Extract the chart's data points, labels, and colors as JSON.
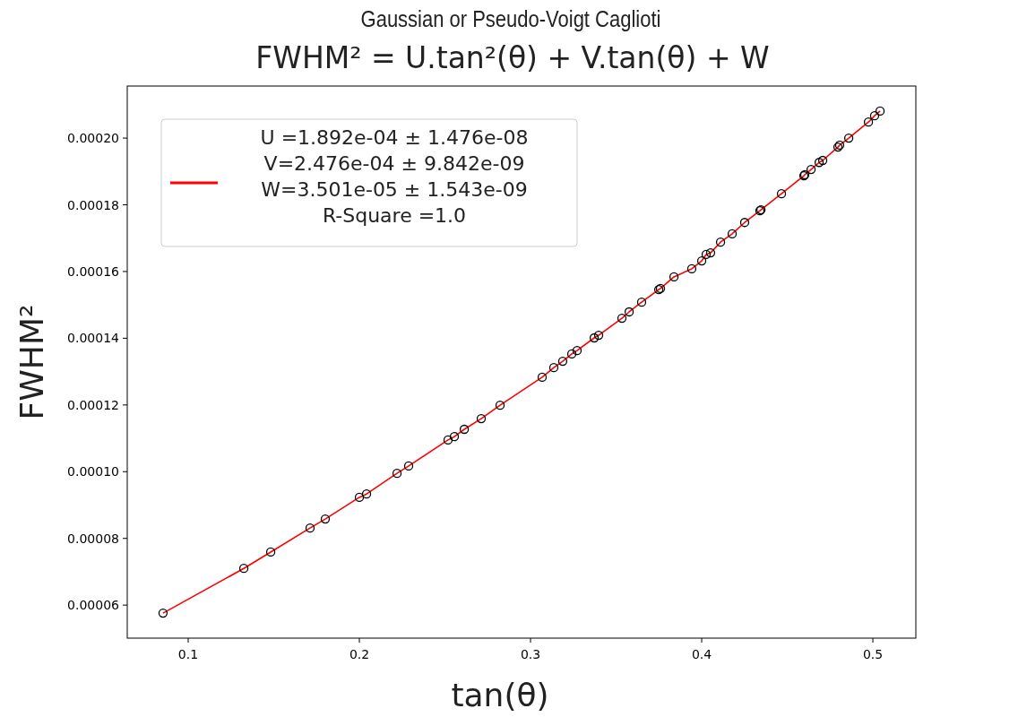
{
  "chart_data": {
    "type": "scatter",
    "title": "Gaussian or Pseudo-Voigt Caglioti",
    "subtitle": "FWHM² = U.tan²(θ) + V.tan(θ) + W",
    "xlabel": "tan(θ)",
    "ylabel": "FWHM²",
    "xlim": [
      0.0644,
      0.5251
    ],
    "xticks": [
      0.1,
      0.2,
      0.3,
      0.4,
      0.5
    ],
    "ylim": [
      5.01e-05,
      0.0002156
    ],
    "yticks": [
      {
        "value": 6e-05,
        "label": "0.00006"
      },
      {
        "value": 8e-05,
        "label": "0.00008"
      },
      {
        "value": 0.0001,
        "label": "0.00010"
      },
      {
        "value": 0.00012,
        "label": "0.00012"
      },
      {
        "value": 0.00014,
        "label": "0.00014"
      },
      {
        "value": 0.00016,
        "label": "0.00016"
      },
      {
        "value": 0.00018,
        "label": "0.00018"
      },
      {
        "value": 0.0002,
        "label": "0.00020"
      }
    ],
    "grid": false,
    "legend": "top left",
    "series": [
      {
        "type": "line",
        "name": "U =1.892e-04 ± 1.476e-08\nV=2.476e-04 ± 9.842e-09\nW=3.501e-05 ± 1.543e-09\nR-Square =1.0",
        "color": "#ff0000",
        "line_style": "solid",
        "marker": "none",
        "x": [
          0.0853,
          0.1325,
          0.1482,
          0.1712,
          0.1801,
          0.2,
          0.2042,
          0.222,
          0.2288,
          0.2518,
          0.2555,
          0.2613,
          0.2712,
          0.2822,
          0.3068,
          0.3136,
          0.3188,
          0.3241,
          0.3272,
          0.3372,
          0.3398,
          0.3534,
          0.3576,
          0.3649,
          0.3749,
          0.3759,
          0.3838,
          0.3942,
          0.4,
          0.4026,
          0.4052,
          0.411,
          0.4178,
          0.4251,
          0.434,
          0.4346,
          0.4466,
          0.4597,
          0.4602,
          0.4639,
          0.4686,
          0.4707,
          0.4796,
          0.4806,
          0.4859,
          0.4974,
          0.501,
          0.5042
        ],
        "values": [
          5.76e-05,
          7.1e-05,
          7.59e-05,
          8.31e-05,
          8.58e-05,
          9.23e-05,
          9.33e-05,
          9.95e-05,
          0.0001017,
          0.0001095,
          0.0001105,
          0.0001127,
          0.0001159,
          0.0001199,
          0.0001283,
          0.0001312,
          0.0001331,
          0.0001353,
          0.0001363,
          0.0001401,
          0.0001409,
          0.000146,
          0.0001479,
          0.0001508,
          0.0001546,
          0.0001549,
          0.0001584,
          0.0001608,
          0.0001632,
          0.0001651,
          0.0001656,
          0.0001688,
          0.0001713,
          0.0001747,
          0.0001782,
          0.0001785,
          0.0001833,
          0.0001887,
          0.000189,
          0.0001906,
          0.0001927,
          0.0001933,
          0.0001973,
          0.0001979,
          0.0002,
          0.0002048,
          0.0002067,
          0.0002081
        ]
      },
      {
        "color": "#000000",
        "marker": "circle",
        "x": [
          0.0853,
          0.1325,
          0.1482,
          0.1712,
          0.1801,
          0.2,
          0.2042,
          0.222,
          0.2288,
          0.2518,
          0.2555,
          0.2613,
          0.2712,
          0.2822,
          0.3068,
          0.3136,
          0.3188,
          0.3241,
          0.3272,
          0.3372,
          0.3398,
          0.3534,
          0.3576,
          0.3649,
          0.3749,
          0.3759,
          0.3838,
          0.3942,
          0.4,
          0.4026,
          0.4052,
          0.411,
          0.4178,
          0.4251,
          0.434,
          0.4346,
          0.4466,
          0.4597,
          0.4602,
          0.4639,
          0.4686,
          0.4707,
          0.4796,
          0.4806,
          0.4859,
          0.4974,
          0.501,
          0.5042
        ],
        "values": [
          5.76e-05,
          7.1e-05,
          7.59e-05,
          8.31e-05,
          8.58e-05,
          9.23e-05,
          9.33e-05,
          9.95e-05,
          0.0001017,
          0.0001095,
          0.0001105,
          0.0001127,
          0.0001159,
          0.0001199,
          0.0001283,
          0.0001312,
          0.0001331,
          0.0001353,
          0.0001363,
          0.0001401,
          0.0001409,
          0.000146,
          0.0001479,
          0.0001508,
          0.0001546,
          0.0001549,
          0.0001584,
          0.0001608,
          0.0001632,
          0.0001651,
          0.0001656,
          0.0001688,
          0.0001713,
          0.0001747,
          0.0001782,
          0.0001785,
          0.0001833,
          0.0001887,
          0.000189,
          0.0001906,
          0.0001927,
          0.0001933,
          0.0001973,
          0.0001979,
          0.0002,
          0.0002048,
          0.0002067,
          0.0002081
        ]
      }
    ]
  }
}
